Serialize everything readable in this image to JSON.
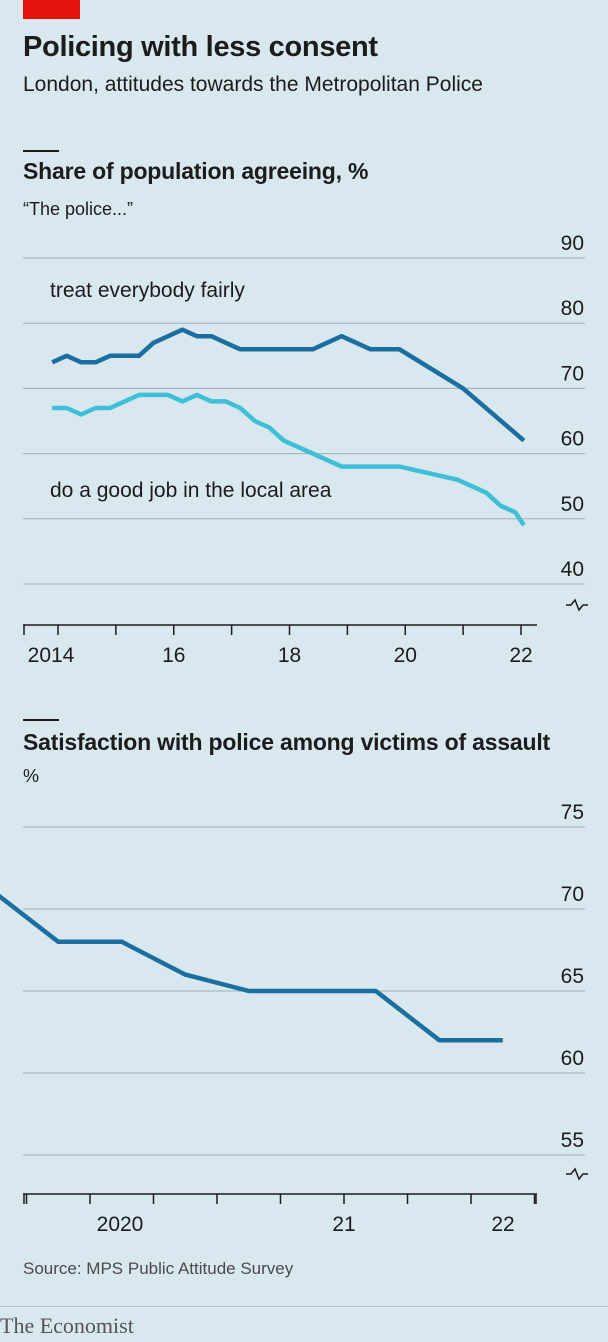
{
  "header": {
    "title": "Policing with less consent",
    "subtitle": "London, attitudes towards the Metropolitan Police"
  },
  "panels": [
    {
      "title": "Share of population agreeing, %",
      "subtitle": "“The police...”"
    },
    {
      "title": "Satisfaction with police among victims of assault",
      "subtitle": "%"
    }
  ],
  "source": "Source: MPS Public Attitude Survey",
  "brand": "The Economist",
  "colors": {
    "background": "#d9e7ef",
    "dark_series": "#1a6fa0",
    "light_series": "#3ebfd6",
    "brand_red": "#e3120b",
    "grid": "#1c1c1c"
  },
  "chart_data": [
    {
      "type": "line",
      "title": "Share of population agreeing, %",
      "subtitle": "“The police...”",
      "ylim": [
        35,
        90
      ],
      "y_ticks": [
        40,
        50,
        60,
        70,
        80,
        90
      ],
      "xlim": [
        2013.8,
        2022.3
      ],
      "x_tick_labels": [
        {
          "x": 2014,
          "label": "2014"
        },
        {
          "x": 2016,
          "label": "16"
        },
        {
          "x": 2018,
          "label": "18"
        },
        {
          "x": 2020,
          "label": "20"
        },
        {
          "x": 2022,
          "label": "22"
        }
      ],
      "y_axis_break": true,
      "series": [
        {
          "name": "treat everybody fairly",
          "color": "#1a6fa0",
          "x": [
            2013.9,
            2014.15,
            2014.4,
            2014.65,
            2014.9,
            2015.4,
            2015.65,
            2015.9,
            2016.15,
            2016.4,
            2016.65,
            2016.9,
            2017.15,
            2017.4,
            2017.65,
            2017.9,
            2018.4,
            2018.9,
            2019.4,
            2019.9,
            2021.0,
            2022.05
          ],
          "values": [
            74,
            75,
            74,
            74,
            75,
            75,
            77,
            78,
            79,
            78,
            78,
            77,
            76,
            76,
            76,
            76,
            76,
            78,
            76,
            76,
            70,
            62
          ]
        },
        {
          "name": "do a good job in the local area",
          "color": "#3ebfd6",
          "x": [
            2013.9,
            2014.15,
            2014.4,
            2014.65,
            2014.9,
            2015.4,
            2015.65,
            2015.9,
            2016.15,
            2016.4,
            2016.65,
            2016.9,
            2017.15,
            2017.4,
            2017.65,
            2017.9,
            2018.4,
            2018.9,
            2019.4,
            2019.9,
            2020.9,
            2021.4,
            2021.65,
            2021.9,
            2022.05
          ],
          "values": [
            67,
            67,
            66,
            67,
            67,
            69,
            69,
            69,
            68,
            69,
            68,
            68,
            67,
            65,
            64,
            62,
            60,
            58,
            58,
            58,
            56,
            54,
            52,
            51,
            49
          ]
        }
      ]
    },
    {
      "type": "line",
      "title": "Satisfaction with police among victims of assault",
      "subtitle": "%",
      "ylim": [
        53,
        77
      ],
      "y_ticks": [
        55,
        60,
        65,
        70,
        75
      ],
      "xlim": [
        2019.5,
        2022.0
      ],
      "x_tick_labels": [
        {
          "x": 2020.0,
          "label": "2020"
        },
        {
          "x": 2021.0,
          "label": "21"
        },
        {
          "x": 2022.0,
          "label": "22"
        }
      ],
      "y_axis_break": true,
      "series": [
        {
          "name": "",
          "color": "#1a6fa0",
          "x": [
            2019.625,
            2019.875,
            2020.125,
            2020.375,
            2020.625,
            2020.875,
            2021.125,
            2021.375,
            2021.625
          ],
          "values": [
            71,
            68,
            68,
            66,
            65,
            65,
            65,
            62,
            62
          ]
        }
      ]
    }
  ]
}
